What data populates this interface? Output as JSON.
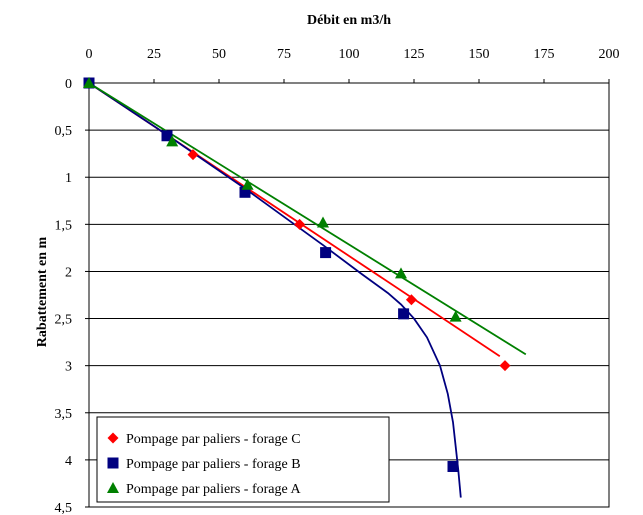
{
  "chart_data": {
    "type": "scatter",
    "xlabel": "Débit en m3/h",
    "ylabel": "Rabattement en m",
    "x_axis_position": "top",
    "y_axis_inverted": true,
    "xlim": [
      0,
      200
    ],
    "ylim": [
      0,
      4.5
    ],
    "x_ticks": [
      0,
      25,
      50,
      75,
      100,
      125,
      150,
      175,
      200
    ],
    "x_tick_labels": [
      "0",
      "25",
      "50",
      "75",
      "100",
      "125",
      "150",
      "175",
      "200"
    ],
    "y_ticks": [
      0,
      0.5,
      1,
      1.5,
      2,
      2.5,
      3,
      3.5,
      4,
      4.5
    ],
    "y_tick_labels": [
      "0",
      "0,5",
      "1",
      "1,5",
      "2",
      "2,5",
      "3",
      "3,5",
      "4",
      "4,5"
    ],
    "grid": "horizontal",
    "legend_position": "bottom-left",
    "series": [
      {
        "name": "Pompage par paliers - forage C",
        "color": "#ff0000",
        "marker": "diamond",
        "x": [
          0,
          40,
          81,
          124,
          160
        ],
        "y": [
          0,
          0.76,
          1.5,
          2.3,
          3.0
        ],
        "trendline": {
          "x": [
            0,
            158
          ],
          "y": [
            0,
            2.9
          ]
        }
      },
      {
        "name": "Pompage par paliers - forage B",
        "color": "#000080",
        "marker": "square",
        "x": [
          0,
          30,
          60,
          91,
          121,
          140
        ],
        "y": [
          0,
          0.56,
          1.16,
          1.8,
          2.45,
          4.07
        ],
        "trendline": {
          "x": [
            0,
            30,
            60,
            90,
            105,
            115,
            120,
            125,
            130,
            135,
            138,
            140,
            141,
            142,
            143
          ],
          "y": [
            0,
            0.55,
            1.12,
            1.72,
            2.03,
            2.23,
            2.35,
            2.5,
            2.7,
            3.0,
            3.3,
            3.6,
            3.85,
            4.1,
            4.4
          ]
        }
      },
      {
        "name": "Pompage par paliers - forage A",
        "color": "#008000",
        "marker": "triangle",
        "x": [
          0,
          32,
          61,
          90,
          120,
          141
        ],
        "y": [
          0,
          0.62,
          1.08,
          1.48,
          2.02,
          2.48
        ],
        "trendline": {
          "x": [
            0,
            168
          ],
          "y": [
            0,
            2.88
          ]
        }
      }
    ]
  }
}
